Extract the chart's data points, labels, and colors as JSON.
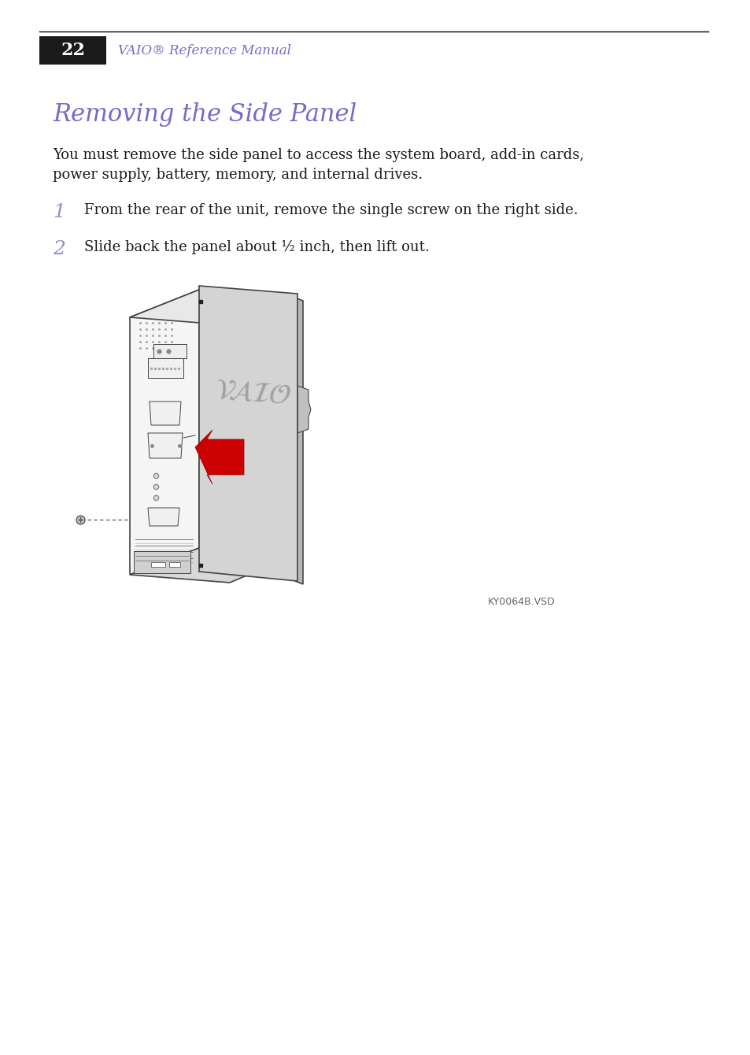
{
  "page_number": "22",
  "header_text": "VAIO® Reference Manual",
  "title": "Removing the Side Panel",
  "title_color": "#7B68C8",
  "body_text_line1": "You must remove the side panel to access the system board, add-in cards,",
  "body_text_line2": "power supply, battery, memory, and internal drives.",
  "step1_num": "1",
  "step1_text": "From the rear of the unit, remove the single screw on the right side.",
  "step2_num": "2",
  "step2_text": "Slide back the panel about ½ inch, then lift out.",
  "caption": "KY0064B.VSD",
  "bg_color": "#ffffff",
  "header_bar_color": "#1a1a1a",
  "header_num_color": "#ffffff",
  "step_num_color": "#9090c8",
  "body_text_color": "#1a1a1a",
  "header_line_color": "#000000",
  "arrow_color": "#cc0000",
  "panel_fill": "#d4d4d4",
  "panel_edge": "#555555",
  "tower_back_fill": "#f5f5f5",
  "tower_top_fill": "#e8e8e8",
  "tower_right_fill": "#c8c8c8",
  "computer_outline": "#444444",
  "port_fill": "#ffffff",
  "screw_color": "#666666"
}
